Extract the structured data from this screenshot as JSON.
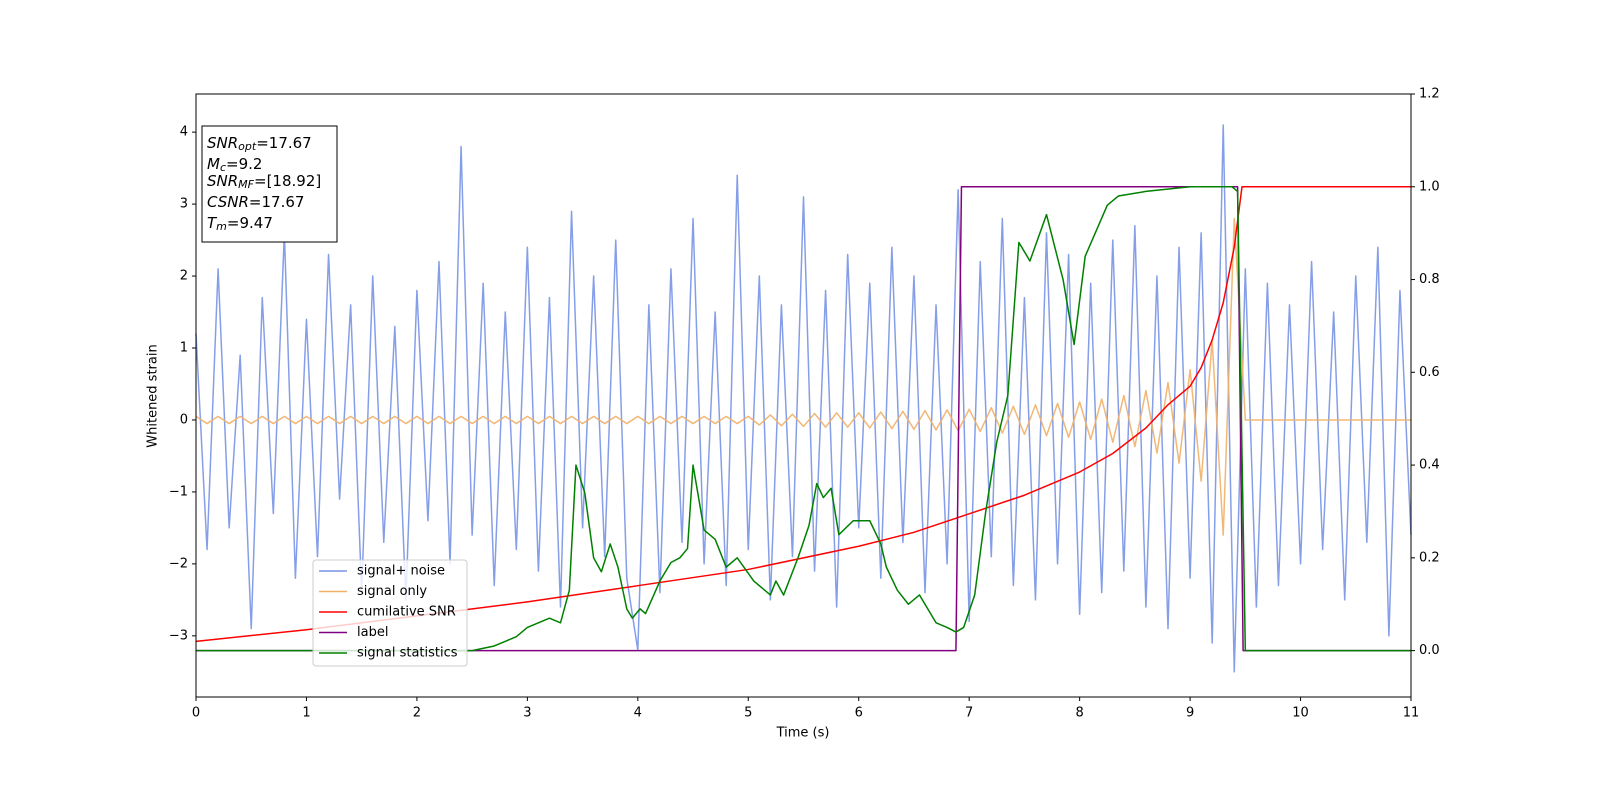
{
  "chart_data": {
    "type": "line",
    "xlabel": "Time (s)",
    "ylabel": "Whitened strain",
    "xlim": [
      0,
      11
    ],
    "xticks": [
      0,
      1,
      2,
      3,
      4,
      5,
      6,
      7,
      8,
      9,
      10,
      11
    ],
    "ylim": [
      -3.85,
      4.53
    ],
    "yticks": [
      {
        "value": -3,
        "label": "−3"
      },
      {
        "value": -2,
        "label": "−2"
      },
      {
        "value": -1,
        "label": "−1"
      },
      0,
      1,
      2,
      3,
      4
    ],
    "y2lim": [
      -0.1,
      1.2
    ],
    "y2ticks": [
      {
        "value": 0,
        "label": "0.0"
      },
      {
        "value": 0.2,
        "label": "0.2"
      },
      {
        "value": 0.4,
        "label": "0.4"
      },
      {
        "value": 0.6,
        "label": "0.6"
      },
      {
        "value": 0.8,
        "label": "0.8"
      },
      {
        "value": 1.0,
        "label": "1.0"
      },
      {
        "value": 1.2,
        "label": "1.2"
      }
    ],
    "legend": "lower left",
    "annotation": [
      {
        "name": "SNR",
        "sub": "opt",
        "text": "=17.67"
      },
      {
        "name": "M",
        "sub": "c",
        "text": "=9.2"
      },
      {
        "name": "SNR",
        "sub": "MF",
        "text": "=[18.92]"
      },
      {
        "name": "CSNR",
        "sub": "",
        "text": "=17.67"
      },
      {
        "name": "T",
        "sub": "m",
        "text": "=9.47"
      }
    ],
    "series": [
      {
        "name": "signal+ noise",
        "color": "#7893e6",
        "x": [
          0,
          0.1,
          0.2,
          0.3,
          0.4,
          0.5,
          0.6,
          0.7,
          0.8,
          0.9,
          1,
          1.1,
          1.2,
          1.3,
          1.4,
          1.5,
          1.6,
          1.7,
          1.8,
          1.9,
          2,
          2.1,
          2.2,
          2.3,
          2.4,
          2.5,
          2.6,
          2.7,
          2.8,
          2.9,
          3,
          3.1,
          3.2,
          3.3,
          3.4,
          3.5,
          3.6,
          3.7,
          3.8,
          3.9,
          4,
          4.1,
          4.2,
          4.3,
          4.4,
          4.5,
          4.6,
          4.7,
          4.8,
          4.9,
          5,
          5.1,
          5.2,
          5.3,
          5.4,
          5.5,
          5.6,
          5.7,
          5.8,
          5.9,
          6,
          6.1,
          6.2,
          6.3,
          6.4,
          6.5,
          6.6,
          6.7,
          6.8,
          6.9,
          7,
          7.1,
          7.2,
          7.3,
          7.4,
          7.5,
          7.6,
          7.7,
          7.8,
          7.9,
          8,
          8.1,
          8.2,
          8.3,
          8.4,
          8.5,
          8.6,
          8.7,
          8.8,
          8.9,
          9,
          9.1,
          9.2,
          9.3,
          9.4,
          9.5,
          9.6,
          9.7,
          9.8,
          9.9,
          10,
          10.1,
          10.2,
          10.3,
          10.4,
          10.5,
          10.6,
          10.7,
          10.8,
          10.9,
          11
        ],
        "values": [
          1.2,
          -1.8,
          2.1,
          -1.5,
          0.9,
          -2.9,
          1.7,
          -1.3,
          2.6,
          -2.2,
          1.4,
          -1.9,
          2.3,
          -1.1,
          1.6,
          -2.4,
          2.0,
          -1.7,
          1.3,
          -2.5,
          1.8,
          -1.4,
          2.2,
          -2.0,
          3.8,
          -1.6,
          1.9,
          -2.3,
          1.5,
          -1.8,
          2.4,
          -2.1,
          1.7,
          -2.6,
          2.9,
          -1.5,
          2.0,
          -1.9,
          2.5,
          -2.2,
          -3.2,
          1.6,
          -2.4,
          2.1,
          -1.7,
          2.8,
          -2.0,
          1.5,
          -2.3,
          3.4,
          -1.8,
          2.0,
          -2.5,
          1.6,
          -1.9,
          3.1,
          -2.1,
          1.8,
          -2.6,
          2.3,
          -1.5,
          1.9,
          -2.2,
          2.4,
          -1.7,
          2.0,
          -2.4,
          1.6,
          -2.0,
          3.2,
          -2.8,
          2.2,
          -1.9,
          2.8,
          -2.3,
          1.7,
          -2.5,
          2.6,
          -2.0,
          2.3,
          -2.7,
          1.9,
          -2.4,
          2.5,
          -2.1,
          2.7,
          -2.6,
          2.0,
          -2.9,
          2.4,
          -2.2,
          2.6,
          -3.1,
          4.1,
          -3.5,
          2.1,
          -2.6,
          1.9,
          -2.3,
          1.6,
          -2.0,
          2.2,
          -1.8,
          1.5,
          -2.5,
          2.0,
          -1.7,
          2.4,
          -3.0,
          1.8,
          -1.6
        ]
      },
      {
        "name": "signal only",
        "color": "#f0b068",
        "x": [
          0,
          0.1,
          0.2,
          0.3,
          0.4,
          0.5,
          0.6,
          0.7,
          0.8,
          0.9,
          1,
          1.1,
          1.2,
          1.3,
          1.4,
          1.5,
          1.6,
          1.7,
          1.8,
          1.9,
          2,
          2.1,
          2.2,
          2.3,
          2.4,
          2.5,
          2.6,
          2.7,
          2.8,
          2.9,
          3,
          3.1,
          3.2,
          3.3,
          3.4,
          3.5,
          3.6,
          3.7,
          3.8,
          3.9,
          4,
          4.1,
          4.2,
          4.3,
          4.4,
          4.5,
          4.6,
          4.7,
          4.8,
          4.9,
          5,
          5.1,
          5.2,
          5.3,
          5.4,
          5.5,
          5.6,
          5.7,
          5.8,
          5.9,
          6,
          6.1,
          6.2,
          6.3,
          6.4,
          6.5,
          6.6,
          6.7,
          6.8,
          6.9,
          7,
          7.1,
          7.2,
          7.3,
          7.4,
          7.5,
          7.6,
          7.7,
          7.8,
          7.9,
          8,
          8.1,
          8.2,
          8.3,
          8.4,
          8.5,
          8.6,
          8.7,
          8.8,
          8.9,
          9,
          9.1,
          9.2,
          9.3,
          9.4,
          9.5,
          9.6,
          9.7,
          9.8,
          9.9,
          10,
          10.1,
          10.2,
          10.3,
          10.4,
          10.5,
          10.6,
          10.7,
          10.8,
          10.9,
          11
        ],
        "values": [
          0.05,
          -0.05,
          0.05,
          -0.05,
          0.05,
          -0.05,
          0.05,
          -0.05,
          0.05,
          -0.05,
          0.05,
          -0.05,
          0.05,
          -0.05,
          0.05,
          -0.05,
          0.05,
          -0.05,
          0.05,
          -0.05,
          0.05,
          -0.05,
          0.05,
          -0.05,
          0.05,
          -0.05,
          0.05,
          -0.05,
          0.05,
          -0.05,
          0.05,
          -0.05,
          0.05,
          -0.05,
          0.05,
          -0.05,
          0.05,
          -0.05,
          0.05,
          -0.05,
          0.05,
          -0.05,
          0.05,
          -0.05,
          0.05,
          -0.05,
          0.05,
          -0.05,
          0.05,
          -0.05,
          0.05,
          -0.07,
          0.07,
          -0.08,
          0.08,
          -0.09,
          0.09,
          -0.1,
          0.1,
          -0.1,
          0.1,
          -0.11,
          0.11,
          -0.12,
          0.12,
          -0.13,
          0.13,
          -0.14,
          0.14,
          -0.15,
          0.15,
          -0.16,
          0.17,
          -0.18,
          0.19,
          -0.2,
          0.21,
          -0.22,
          0.23,
          -0.24,
          0.25,
          -0.27,
          0.29,
          -0.31,
          0.34,
          -0.37,
          0.41,
          -0.46,
          0.52,
          -0.6,
          0.7,
          -0.85,
          1.1,
          -1.6,
          2.8,
          0,
          0,
          0,
          0,
          0,
          0,
          0,
          0,
          0,
          0,
          0,
          0,
          0,
          0,
          0,
          0
        ]
      },
      {
        "name": "cumilative SNR",
        "color": "#ff0000",
        "axis": "y2",
        "x": [
          0,
          1,
          2,
          3,
          4,
          5,
          6,
          6.5,
          7,
          7.5,
          8,
          8.3,
          8.6,
          8.8,
          9,
          9.1,
          9.2,
          9.3,
          9.4,
          9.47,
          11
        ],
        "values": [
          0.02,
          0.045,
          0.075,
          0.105,
          0.14,
          0.175,
          0.225,
          0.255,
          0.295,
          0.335,
          0.385,
          0.425,
          0.48,
          0.53,
          0.57,
          0.61,
          0.67,
          0.75,
          0.87,
          1.0,
          1.0
        ]
      },
      {
        "name": "label",
        "color": "#800080",
        "axis": "y2",
        "x": [
          0,
          6.88,
          6.93,
          9.43,
          9.48,
          11
        ],
        "values": [
          0,
          0,
          1,
          1,
          0,
          0
        ]
      },
      {
        "name": "signal statistics",
        "color": "#008000",
        "axis": "y2",
        "x": [
          0,
          2.5,
          2.7,
          2.9,
          3.0,
          3.2,
          3.3,
          3.38,
          3.44,
          3.52,
          3.6,
          3.67,
          3.75,
          3.82,
          3.9,
          3.95,
          4.02,
          4.07,
          4.2,
          4.3,
          4.38,
          4.45,
          4.5,
          4.6,
          4.7,
          4.8,
          4.9,
          5.05,
          5.2,
          5.25,
          5.32,
          5.45,
          5.55,
          5.62,
          5.68,
          5.75,
          5.82,
          5.95,
          6.1,
          6.2,
          6.25,
          6.35,
          6.45,
          6.55,
          6.7,
          6.8,
          6.88,
          6.95,
          7.05,
          7.15,
          7.25,
          7.35,
          7.45,
          7.55,
          7.7,
          7.85,
          7.95,
          8.05,
          8.25,
          8.35,
          8.6,
          9.0,
          9.38,
          9.43,
          9.5,
          11
        ],
        "values": [
          0,
          0,
          0.01,
          0.03,
          0.05,
          0.07,
          0.06,
          0.13,
          0.4,
          0.34,
          0.2,
          0.17,
          0.23,
          0.18,
          0.09,
          0.07,
          0.09,
          0.08,
          0.15,
          0.19,
          0.2,
          0.22,
          0.4,
          0.26,
          0.24,
          0.18,
          0.2,
          0.15,
          0.12,
          0.15,
          0.12,
          0.2,
          0.27,
          0.36,
          0.33,
          0.35,
          0.25,
          0.28,
          0.28,
          0.23,
          0.18,
          0.13,
          0.1,
          0.12,
          0.06,
          0.05,
          0.04,
          0.05,
          0.12,
          0.3,
          0.45,
          0.55,
          0.88,
          0.84,
          0.94,
          0.8,
          0.66,
          0.85,
          0.96,
          0.98,
          0.99,
          1.0,
          1.0,
          0.99,
          0,
          0
        ]
      }
    ]
  }
}
